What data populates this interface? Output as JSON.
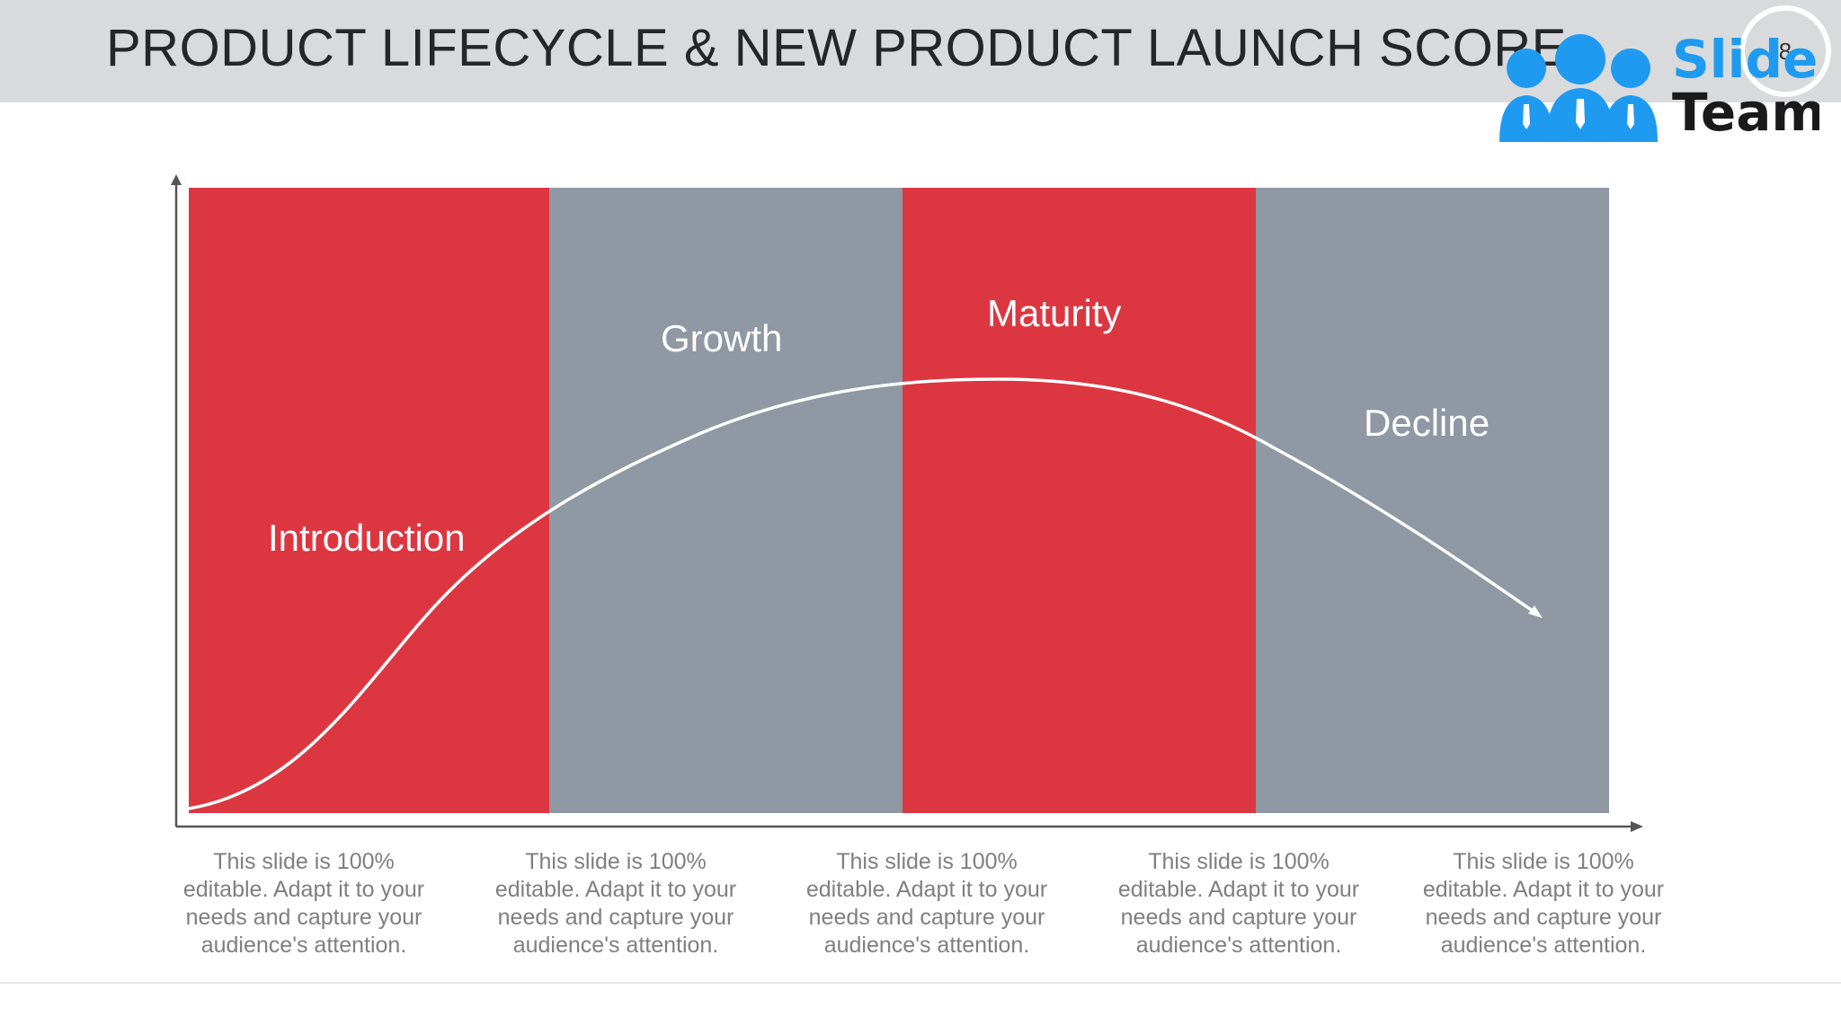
{
  "header": {
    "title": "PRODUCT LIFECYCLE & NEW PRODUCT LAUNCH SCORE",
    "page_number": "8"
  },
  "logo": {
    "text_top": "Slide",
    "text_bottom": "Team",
    "color": "#1e9bf0"
  },
  "diagram": {
    "stages": [
      {
        "label": "Introduction",
        "color": "#dc3741"
      },
      {
        "label": "Growth",
        "color": "#8f98a3"
      },
      {
        "label": "Maturity",
        "color": "#dc3741"
      },
      {
        "label": "Decline",
        "color": "#8f98a3"
      }
    ],
    "curve_color": "#ffffff",
    "axis_color": "#555555"
  },
  "captions": [
    "This slide is 100% editable. Adapt it to your needs and capture your audience's attention.",
    "This slide is 100% editable. Adapt it to your needs and capture your audience's attention.",
    "This slide is 100% editable. Adapt it to your needs and capture your audience's attention.",
    "This slide is 100% editable. Adapt it to your needs and capture your audience's attention.",
    "This slide is 100% editable. Adapt it to your needs and capture your audience's attention."
  ]
}
